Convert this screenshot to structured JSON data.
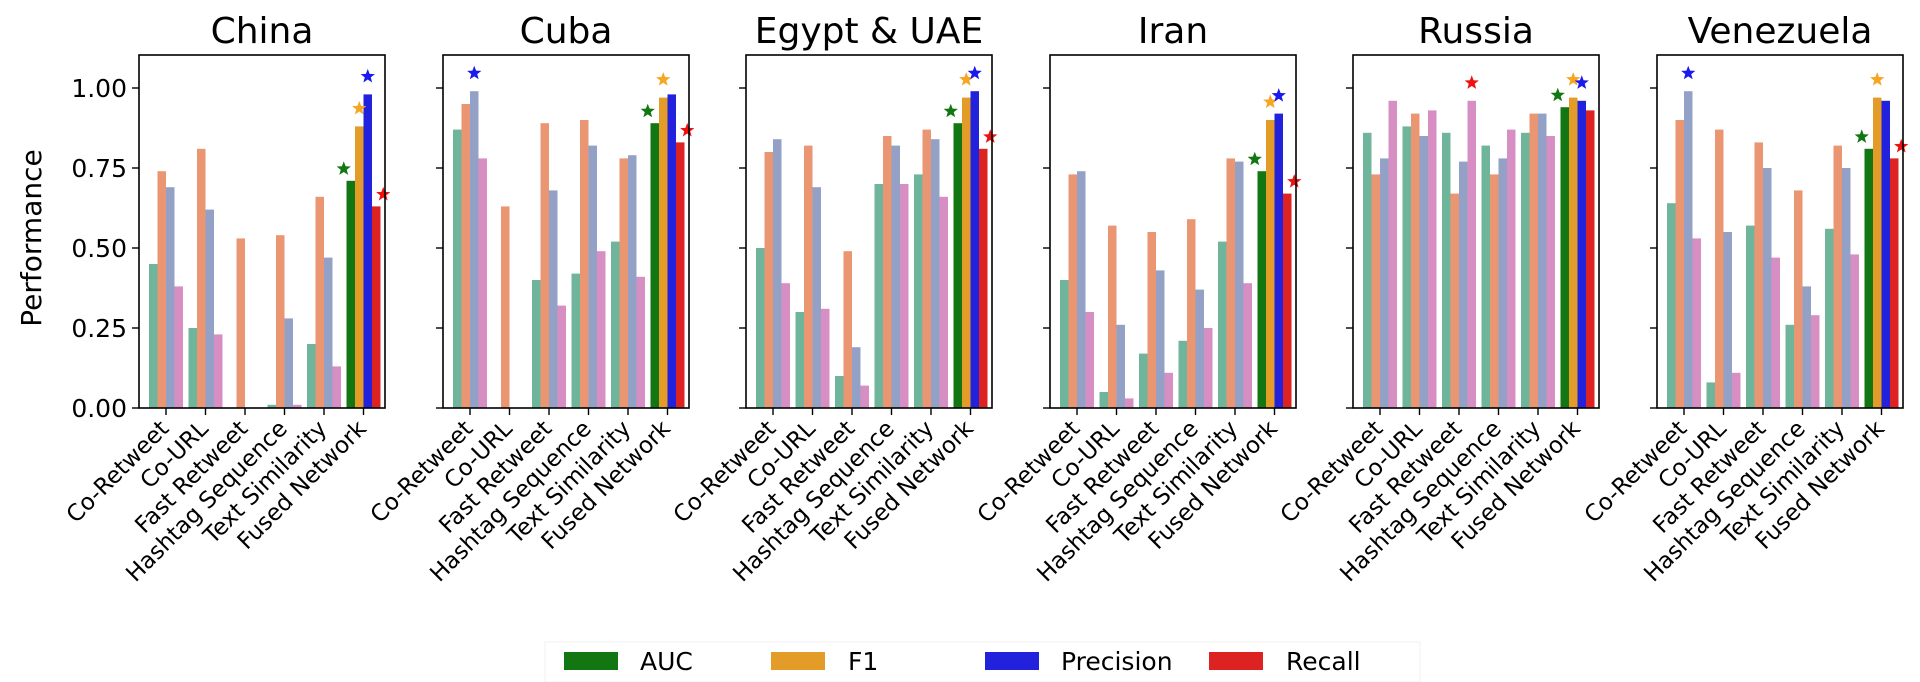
{
  "chart_data": {
    "type": "bar",
    "ylabel": "Performance",
    "ylim": [
      0,
      1.1
    ],
    "yticks": [
      "0.00",
      "0.25",
      "0.50",
      "0.75",
      "1.00"
    ],
    "categories": [
      "Co-Retweet",
      "Co-URL",
      "Fast Retweet",
      "Hashtag Sequence",
      "Text Similarity",
      "Fused Network"
    ],
    "metrics": [
      "AUC",
      "F1",
      "Precision",
      "Recall"
    ],
    "colors": {
      "light": [
        "#6fb59b",
        "#ea9673",
        "#93a1c6",
        "#d78fc3"
      ],
      "fused": [
        "#127712",
        "#e39c27",
        "#2222dd",
        "#dd2222"
      ],
      "star": [
        "#117711",
        "#f5a623",
        "#1a1aee",
        "#ee1111"
      ]
    },
    "legend": {
      "position": "bottom",
      "entries": [
        "AUC",
        "F1",
        "Precision",
        "Recall"
      ]
    },
    "grid": false,
    "panels": [
      {
        "title": "China",
        "values": [
          [
            0.45,
            0.74,
            0.69,
            0.38
          ],
          [
            0.25,
            0.81,
            0.62,
            0.23
          ],
          [
            0.0,
            0.53,
            0.0,
            0.0
          ],
          [
            0.01,
            0.54,
            0.28,
            0.01
          ],
          [
            0.2,
            0.66,
            0.47,
            0.13
          ],
          [
            0.71,
            0.88,
            0.98,
            0.63
          ]
        ],
        "best": [
          5,
          5,
          5,
          5
        ]
      },
      {
        "title": "Cuba",
        "values": [
          [
            0.87,
            0.95,
            0.99,
            0.78
          ],
          [
            0.0,
            0.63,
            0.0,
            0.0
          ],
          [
            0.4,
            0.89,
            0.68,
            0.32
          ],
          [
            0.42,
            0.9,
            0.82,
            0.49
          ],
          [
            0.52,
            0.78,
            0.79,
            0.41
          ],
          [
            0.89,
            0.97,
            0.98,
            0.83
          ]
        ],
        "best": [
          5,
          5,
          0,
          5
        ]
      },
      {
        "title": "Egypt & UAE",
        "values": [
          [
            0.5,
            0.8,
            0.84,
            0.39
          ],
          [
            0.3,
            0.82,
            0.69,
            0.31
          ],
          [
            0.1,
            0.49,
            0.19,
            0.07
          ],
          [
            0.7,
            0.85,
            0.82,
            0.7
          ],
          [
            0.73,
            0.87,
            0.84,
            0.66
          ],
          [
            0.89,
            0.97,
            0.99,
            0.81
          ]
        ],
        "best": [
          5,
          5,
          5,
          5
        ]
      },
      {
        "title": "Iran",
        "values": [
          [
            0.4,
            0.73,
            0.74,
            0.3
          ],
          [
            0.05,
            0.57,
            0.26,
            0.03
          ],
          [
            0.17,
            0.55,
            0.43,
            0.11
          ],
          [
            0.21,
            0.59,
            0.37,
            0.25
          ],
          [
            0.52,
            0.78,
            0.77,
            0.39
          ],
          [
            0.74,
            0.9,
            0.92,
            0.67
          ]
        ],
        "best": [
          5,
          5,
          5,
          5
        ]
      },
      {
        "title": "Russia",
        "values": [
          [
            0.86,
            0.73,
            0.78,
            0.96
          ],
          [
            0.88,
            0.92,
            0.85,
            0.93
          ],
          [
            0.86,
            0.67,
            0.77,
            0.96
          ],
          [
            0.82,
            0.73,
            0.78,
            0.87
          ],
          [
            0.86,
            0.92,
            0.92,
            0.85
          ],
          [
            0.94,
            0.97,
            0.96,
            0.93
          ]
        ],
        "best": [
          5,
          5,
          5,
          2
        ]
      },
      {
        "title": "Venezuela",
        "values": [
          [
            0.64,
            0.9,
            0.99,
            0.53
          ],
          [
            0.08,
            0.87,
            0.55,
            0.11
          ],
          [
            0.57,
            0.83,
            0.75,
            0.47
          ],
          [
            0.26,
            0.68,
            0.38,
            0.29
          ],
          [
            0.56,
            0.82,
            0.75,
            0.48
          ],
          [
            0.81,
            0.97,
            0.96,
            0.78
          ]
        ],
        "best": [
          5,
          5,
          0,
          5
        ]
      }
    ]
  }
}
